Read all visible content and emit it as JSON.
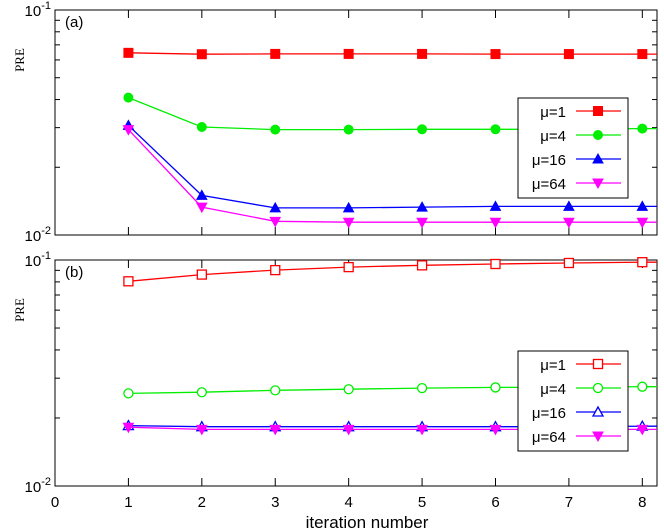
{
  "figure": {
    "xlabel": "iteration number"
  },
  "chart_data": [
    {
      "type": "line",
      "panel_label": "(a)",
      "ylabel": "PRE",
      "yscale": "log",
      "ylim": [
        0.01,
        0.1
      ],
      "y_ticks": [
        {
          "value": 0.1,
          "base": "10",
          "exp": "-1"
        },
        {
          "value": 0.01,
          "base": "10",
          "exp": "-2"
        }
      ],
      "xlim": [
        0,
        8.2
      ],
      "x_ticks": [
        0,
        1,
        2,
        3,
        4,
        5,
        6,
        7,
        8
      ],
      "x_tick_labels": [],
      "legend_position": "right",
      "x": [
        1,
        2,
        3,
        4,
        5,
        6,
        7,
        8
      ],
      "series": [
        {
          "name": "μ=1",
          "color": "#ff0000",
          "marker": "square-filled",
          "values": [
            0.0645,
            0.0636,
            0.0638,
            0.0638,
            0.0638,
            0.0637,
            0.0637,
            0.0637
          ]
        },
        {
          "name": "μ=4",
          "color": "#00ee00",
          "marker": "circle-filled",
          "values": [
            0.0408,
            0.0302,
            0.0294,
            0.0294,
            0.0295,
            0.0295,
            0.0295,
            0.0297
          ]
        },
        {
          "name": "μ=16",
          "color": "#0000ff",
          "marker": "triangle-up-filled",
          "values": [
            0.0307,
            0.015,
            0.0132,
            0.0132,
            0.0133,
            0.0134,
            0.0134,
            0.0134
          ]
        },
        {
          "name": "μ=64",
          "color": "#ff00ff",
          "marker": "triangle-down-filled",
          "values": [
            0.0294,
            0.0133,
            0.0115,
            0.0114,
            0.0114,
            0.0114,
            0.0114,
            0.0114
          ]
        }
      ]
    },
    {
      "type": "line",
      "panel_label": "(b)",
      "ylabel": "PRE",
      "yscale": "log",
      "ylim": [
        0.01,
        0.1
      ],
      "y_ticks": [
        {
          "value": 0.1,
          "base": "10",
          "exp": "-1"
        },
        {
          "value": 0.01,
          "base": "10",
          "exp": "-2"
        }
      ],
      "xlim": [
        0,
        8.2
      ],
      "x_ticks": [
        0,
        1,
        2,
        3,
        4,
        5,
        6,
        7,
        8
      ],
      "x_tick_labels": [
        "0",
        "1",
        "2",
        "3",
        "4",
        "5",
        "6",
        "7",
        "8"
      ],
      "legend_position": "right",
      "x": [
        1,
        2,
        3,
        4,
        5,
        6,
        7,
        8
      ],
      "series": [
        {
          "name": "μ=1",
          "color": "#ff0000",
          "marker": "square-open",
          "values": [
            0.0805,
            0.0862,
            0.0902,
            0.093,
            0.0947,
            0.096,
            0.097,
            0.0978
          ]
        },
        {
          "name": "μ=4",
          "color": "#00ee00",
          "marker": "circle-open",
          "values": [
            0.0257,
            0.026,
            0.0265,
            0.0268,
            0.0271,
            0.0273,
            0.0274,
            0.0275
          ]
        },
        {
          "name": "μ=16",
          "color": "#0000ff",
          "marker": "triangle-up-open",
          "values": [
            0.0185,
            0.0183,
            0.0183,
            0.0183,
            0.0183,
            0.0183,
            0.0183,
            0.0184
          ]
        },
        {
          "name": "μ=64",
          "color": "#ff00ff",
          "marker": "triangle-down-filled",
          "values": [
            0.0182,
            0.0178,
            0.0178,
            0.0178,
            0.0178,
            0.0178,
            0.0178,
            0.0178
          ]
        }
      ]
    }
  ]
}
